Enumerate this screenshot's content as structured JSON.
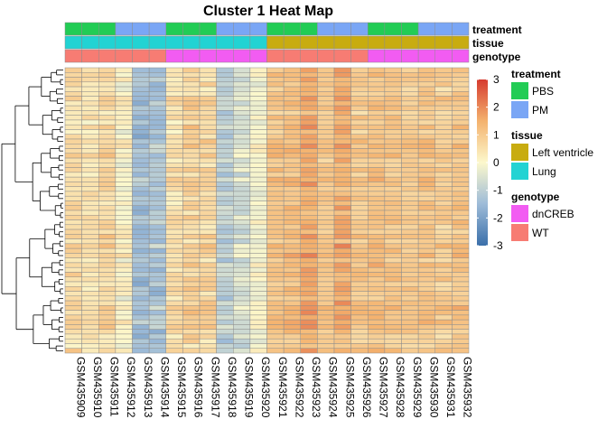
{
  "chart_data": {
    "type": "heatmap",
    "title": "Cluster 1 Heat Map",
    "samples": [
      "GSM435909",
      "GSM435910",
      "GSM435911",
      "GSM435912",
      "GSM435913",
      "GSM435914",
      "GSM435915",
      "GSM435916",
      "GSM435917",
      "GSM435918",
      "GSM435919",
      "GSM435920",
      "GSM435921",
      "GSM435922",
      "GSM435923",
      "GSM435924",
      "GSM435925",
      "GSM435926",
      "GSM435927",
      "GSM435928",
      "GSM435929",
      "GSM435930",
      "GSM435931",
      "GSM435932"
    ],
    "row_count": 60,
    "value_range": [
      -3,
      3
    ],
    "color_scale": {
      "stops": [
        {
          "value": -3,
          "color": "#3a6faa"
        },
        {
          "value": -1.5,
          "color": "#9dbbd8"
        },
        {
          "value": 0,
          "color": "#fcf8cc"
        },
        {
          "value": 1.5,
          "color": "#f4b26e"
        },
        {
          "value": 3,
          "color": "#d63b2f"
        }
      ],
      "ticks": [
        3,
        2,
        1,
        0,
        -1,
        -2,
        -3
      ]
    },
    "column_mean_values": [
      0.6,
      0.4,
      0.7,
      0.1,
      -1.4,
      -1.3,
      0.5,
      0.8,
      0.7,
      -0.9,
      -0.6,
      -0.1,
      1.1,
      1.2,
      1.6,
      1.0,
      1.5,
      1.0,
      1.2,
      1.1,
      1.0,
      1.1,
      0.9,
      1.1
    ],
    "column_variation": [
      0.35,
      0.35,
      0.35,
      0.4,
      0.5,
      0.45,
      0.35,
      0.45,
      0.4,
      0.45,
      0.4,
      0.3,
      0.25,
      0.3,
      0.35,
      0.25,
      0.4,
      0.3,
      0.3,
      0.3,
      0.3,
      0.3,
      0.35,
      0.3
    ],
    "annotations": [
      {
        "name": "treatment",
        "values": [
          "PBS",
          "PBS",
          "PBS",
          "PM",
          "PM",
          "PM",
          "PBS",
          "PBS",
          "PBS",
          "PM",
          "PM",
          "PM",
          "PBS",
          "PBS",
          "PBS",
          "PM",
          "PM",
          "PM",
          "PBS",
          "PBS",
          "PBS",
          "PM",
          "PM",
          "PM"
        ]
      },
      {
        "name": "tissue",
        "values": [
          "Lung",
          "Lung",
          "Lung",
          "Lung",
          "Lung",
          "Lung",
          "Lung",
          "Lung",
          "Lung",
          "Lung",
          "Lung",
          "Lung",
          "Left ventricle",
          "Left ventricle",
          "Left ventricle",
          "Left ventricle",
          "Left ventricle",
          "Left ventricle",
          "Left ventricle",
          "Left ventricle",
          "Left ventricle",
          "Left ventricle",
          "Left ventricle",
          "Left ventricle"
        ]
      },
      {
        "name": "genotype",
        "values": [
          "WT",
          "WT",
          "WT",
          "WT",
          "WT",
          "WT",
          "dnCREB",
          "dnCREB",
          "dnCREB",
          "dnCREB",
          "dnCREB",
          "dnCREB",
          "WT",
          "WT",
          "WT",
          "WT",
          "WT",
          "WT",
          "dnCREB",
          "dnCREB",
          "dnCREB",
          "dnCREB",
          "dnCREB",
          "dnCREB"
        ]
      }
    ],
    "legends": [
      {
        "title": "treatment",
        "items": [
          {
            "label": "PBS",
            "color": "#22cc55"
          },
          {
            "label": "PM",
            "color": "#7aa6f5"
          }
        ]
      },
      {
        "title": "tissue",
        "items": [
          {
            "label": "Left ventricle",
            "color": "#c8ac10"
          },
          {
            "label": "Lung",
            "color": "#22d3d3"
          }
        ]
      },
      {
        "title": "genotype",
        "items": [
          {
            "label": "dnCREB",
            "color": "#f25cf2"
          },
          {
            "label": "WT",
            "color": "#f77c73"
          }
        ]
      }
    ],
    "row_dendrogram": true,
    "cell_border_color": "#8c8c8c"
  }
}
